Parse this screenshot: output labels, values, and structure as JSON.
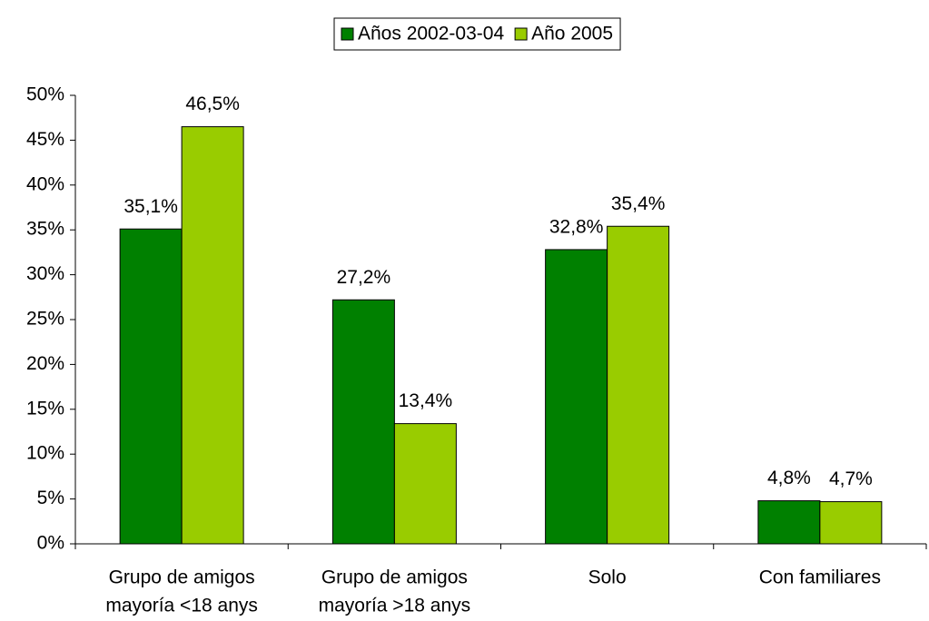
{
  "chart_data": {
    "type": "bar",
    "categories": [
      [
        "Grupo de amigos",
        "mayoría <18 anys"
      ],
      [
        "Grupo de amigos",
        "mayoría >18 anys"
      ],
      [
        "Solo"
      ],
      [
        "Con familiares"
      ]
    ],
    "series": [
      {
        "name": "Años 2002-03-04",
        "color": "#008000",
        "values": [
          35.1,
          27.2,
          32.8,
          4.8
        ],
        "value_labels": [
          "35,1%",
          "27,2%",
          "32,8%",
          "4,8%"
        ]
      },
      {
        "name": "Año 2005",
        "color": "#99cc00",
        "values": [
          46.5,
          13.4,
          35.4,
          4.7
        ],
        "value_labels": [
          "46,5%",
          "13,4%",
          "35,4%",
          "4,7%"
        ]
      }
    ],
    "ylim": [
      0,
      50
    ],
    "yticks": [
      {
        "value": 0,
        "label": "0%"
      },
      {
        "value": 5,
        "label": "5%"
      },
      {
        "value": 10,
        "label": "10%"
      },
      {
        "value": 15,
        "label": "15%"
      },
      {
        "value": 20,
        "label": "20%"
      },
      {
        "value": 25,
        "label": "25%"
      },
      {
        "value": 30,
        "label": "30%"
      },
      {
        "value": 35,
        "label": "35%"
      },
      {
        "value": 40,
        "label": "40%"
      },
      {
        "value": 45,
        "label": "45%"
      },
      {
        "value": 50,
        "label": "50%"
      }
    ],
    "legend": "top",
    "grid": false
  }
}
